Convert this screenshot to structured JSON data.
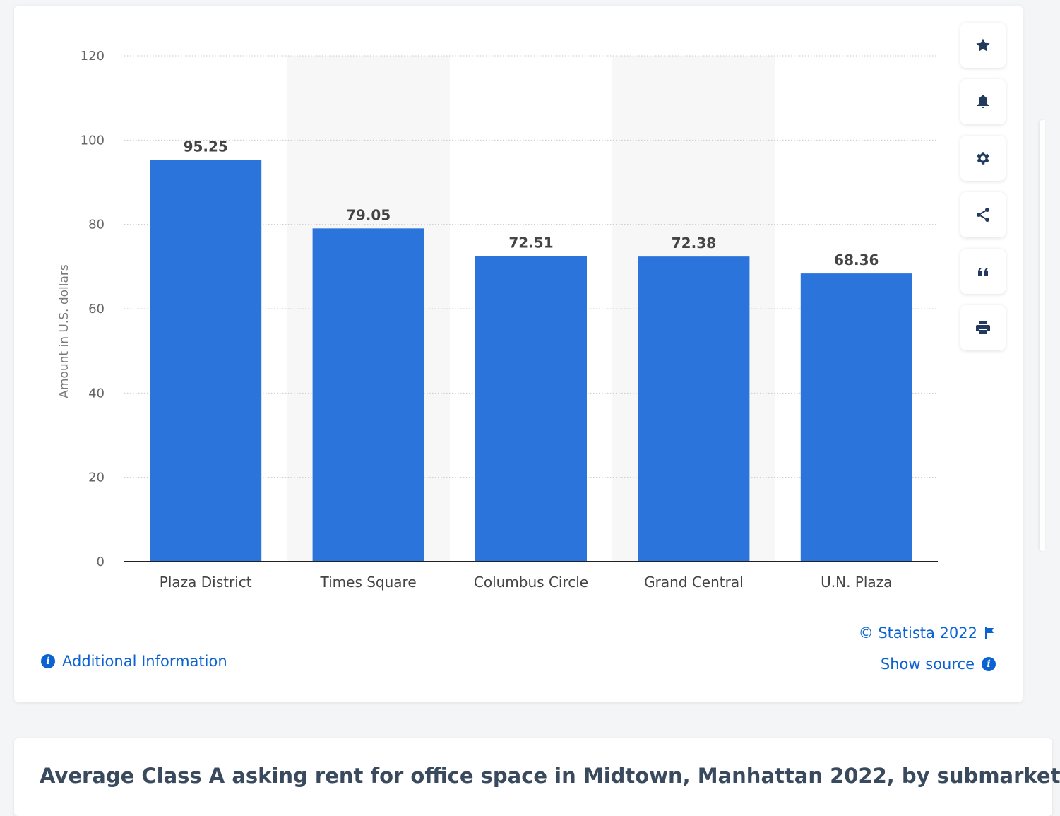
{
  "chart_data": {
    "type": "bar",
    "categories": [
      "Plaza District",
      "Times Square",
      "Columbus Circle",
      "Grand Central",
      "U.N. Plaza"
    ],
    "values": [
      95.25,
      79.05,
      72.51,
      72.38,
      68.36
    ],
    "value_labels": [
      "95.25",
      "79.05",
      "72.51",
      "72.38",
      "68.36"
    ],
    "ylabel": "Amount in U.S. dollars",
    "ylim": [
      0,
      120
    ],
    "yticks": [
      0,
      20,
      40,
      60,
      80,
      100,
      120
    ],
    "grid": true,
    "bar_color": "#2a74dc",
    "band_color": "#f7f7f7"
  },
  "footer": {
    "additional_info": "Additional Information",
    "copyright": "© Statista 2022",
    "show_source": "Show source"
  },
  "toolbar": {
    "icons": [
      "star-icon",
      "bell-icon",
      "gear-icon",
      "share-icon",
      "quote-icon",
      "print-icon"
    ]
  },
  "title": "Average Class A asking rent for office space in Midtown, Manhattan 2022, by submarket",
  "colors": {
    "accent": "#0b63d1",
    "icon": "#223a5e"
  }
}
